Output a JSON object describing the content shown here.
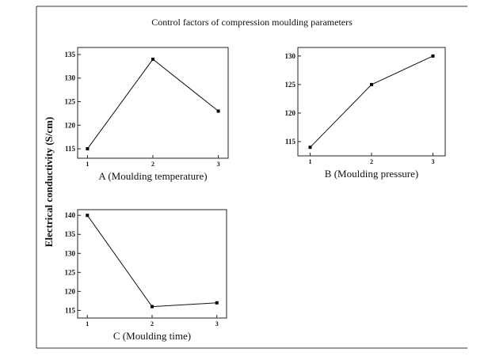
{
  "figure": {
    "title": "Control factors of compression moulding parameters",
    "shared_ylabel": "Electrical conductivity (S/cm)"
  },
  "chart_data": [
    {
      "type": "line",
      "id": "A",
      "title": "",
      "xlabel": "A (Moulding temperature)",
      "ylabel": "Electrical conductivity (S/cm)",
      "x": [
        1,
        2,
        3
      ],
      "xticks": [
        "1",
        "2",
        "3"
      ],
      "xlim": [
        0.85,
        3.15
      ],
      "values": [
        115,
        134,
        123
      ],
      "ylim": [
        113,
        136.5
      ],
      "yticks": [
        115,
        120,
        125,
        130,
        135
      ]
    },
    {
      "type": "line",
      "id": "B",
      "title": "",
      "xlabel": "B (Moulding pressure)",
      "ylabel": "Electrical conductivity (S/cm)",
      "x": [
        1,
        2,
        3
      ],
      "xticks": [
        "1",
        "2",
        "3"
      ],
      "xlim": [
        0.8,
        3.2
      ],
      "values": [
        114,
        125,
        130
      ],
      "ylim": [
        112.5,
        131.5
      ],
      "yticks": [
        115,
        120,
        125,
        130
      ]
    },
    {
      "type": "line",
      "id": "C",
      "title": "",
      "xlabel": "C (Moulding time)",
      "ylabel": "Electrical conductivity (S/cm)",
      "x": [
        1,
        2,
        3
      ],
      "xticks": [
        "1",
        "2",
        "3"
      ],
      "xlim": [
        0.85,
        3.15
      ],
      "values": [
        140,
        116,
        117
      ],
      "ylim": [
        113,
        141.5
      ],
      "yticks": [
        115,
        120,
        125,
        130,
        135,
        140
      ]
    }
  ]
}
